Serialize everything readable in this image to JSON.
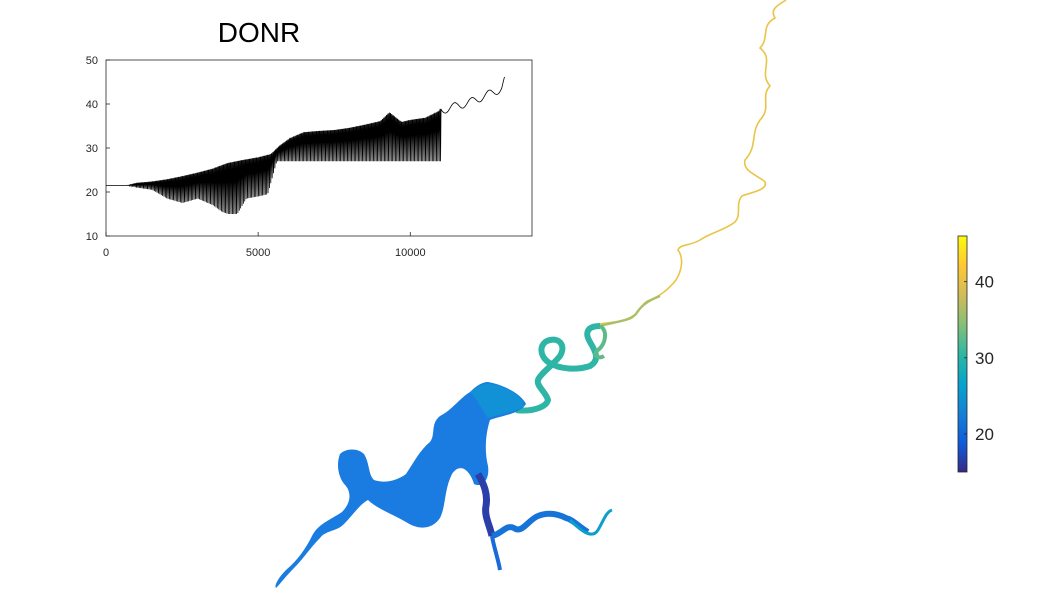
{
  "chart_data": [
    {
      "type": "line",
      "title": "DONR",
      "xlabel": "",
      "ylabel": "",
      "xlim": [
        0,
        14000
      ],
      "ylim": [
        10,
        50
      ],
      "xticks": [
        0,
        5000,
        10000
      ],
      "yticks": [
        10,
        20,
        30,
        40,
        50
      ],
      "grid": false,
      "series_color": "#000000",
      "profile": [
        [
          0,
          21.5
        ],
        [
          700,
          21.5
        ],
        [
          1000,
          22
        ],
        [
          1500,
          22.3
        ],
        [
          2000,
          22.8
        ],
        [
          2500,
          23.5
        ],
        [
          3000,
          24.3
        ],
        [
          3500,
          25.2
        ],
        [
          4000,
          26.5
        ],
        [
          4500,
          27.2
        ],
        [
          5000,
          27.8
        ],
        [
          5400,
          28.5
        ],
        [
          5700,
          30.5
        ],
        [
          6000,
          32
        ],
        [
          6500,
          33.5
        ],
        [
          7000,
          33.8
        ],
        [
          7500,
          34
        ],
        [
          8000,
          34.5
        ],
        [
          8500,
          35.2
        ],
        [
          9000,
          36
        ],
        [
          9300,
          38
        ],
        [
          9700,
          35.8
        ],
        [
          10000,
          36.3
        ],
        [
          10500,
          36.8
        ],
        [
          11000,
          38.5
        ],
        [
          11500,
          39.5
        ],
        [
          12000,
          40.5
        ],
        [
          12500,
          42
        ],
        [
          13000,
          43.5
        ],
        [
          13100,
          45.5
        ]
      ],
      "dips": [
        [
          700,
          21.5
        ],
        [
          1000,
          21
        ],
        [
          1500,
          20.5
        ],
        [
          2000,
          18.5
        ],
        [
          2500,
          17.5
        ],
        [
          3000,
          18.5
        ],
        [
          3500,
          17
        ],
        [
          3800,
          15.5
        ],
        [
          4000,
          15
        ],
        [
          4300,
          15
        ],
        [
          4600,
          18.5
        ],
        [
          5000,
          19
        ],
        [
          5300,
          19.5
        ],
        [
          5600,
          27
        ],
        [
          6000,
          27
        ],
        [
          7000,
          27
        ],
        [
          8000,
          27
        ],
        [
          9000,
          27
        ],
        [
          10000,
          27
        ],
        [
          11000,
          27
        ]
      ]
    },
    {
      "type": "heatmap",
      "title": "",
      "colorbar": {
        "min": 15,
        "max": 46,
        "ticks": [
          20,
          30,
          40
        ],
        "colormap": "parula",
        "stops": [
          "#352a87",
          "#0f5cdd",
          "#1481d6",
          "#06a4ca",
          "#2eb7a4",
          "#87bf77",
          "#d1bb59",
          "#fec832",
          "#f9fb0e"
        ]
      }
    }
  ]
}
